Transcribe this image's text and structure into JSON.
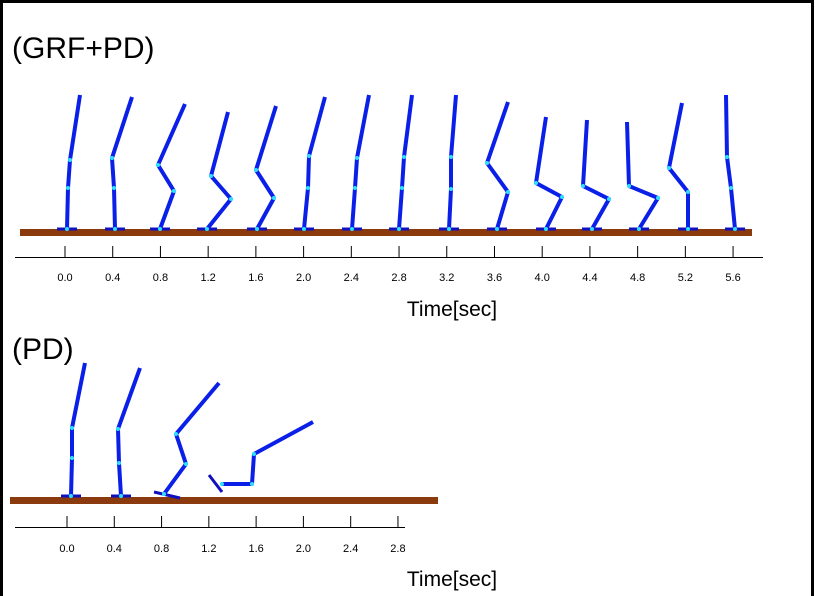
{
  "panels": [
    {
      "title": "(GRF+PD)",
      "xlabel": "Time[sec]",
      "ticks": [
        {
          "value": 0,
          "label": "0.0"
        },
        {
          "value": 0.4,
          "label": "0.4"
        },
        {
          "value": 0.8,
          "label": "0.8"
        },
        {
          "value": 1.2,
          "label": "1.2"
        },
        {
          "value": 1.6,
          "label": "1.6"
        },
        {
          "value": 2,
          "label": "2.0"
        },
        {
          "value": 2.4,
          "label": "2.4"
        },
        {
          "value": 2.8,
          "label": "2.8"
        },
        {
          "value": 3.2,
          "label": "3.2"
        },
        {
          "value": 3.6,
          "label": "3.6"
        },
        {
          "value": 4,
          "label": "4.0"
        },
        {
          "value": 4.4,
          "label": "4.4"
        },
        {
          "value": 4.8,
          "label": "4.8"
        },
        {
          "value": 5.2,
          "label": "5.2"
        },
        {
          "value": 5.6,
          "label": "5.6"
        }
      ]
    },
    {
      "title": "(PD)",
      "xlabel": "Time[sec]",
      "ticks": [
        {
          "value": 0,
          "label": "0.0"
        },
        {
          "value": 0.4,
          "label": "0.4"
        },
        {
          "value": 0.8,
          "label": "0.8"
        },
        {
          "value": 1.2,
          "label": "1.2"
        },
        {
          "value": 1.6,
          "label": "1.6"
        },
        {
          "value": 2,
          "label": "2.0"
        },
        {
          "value": 2.4,
          "label": "2.4"
        },
        {
          "value": 2.8,
          "label": "2.8"
        }
      ]
    }
  ]
}
